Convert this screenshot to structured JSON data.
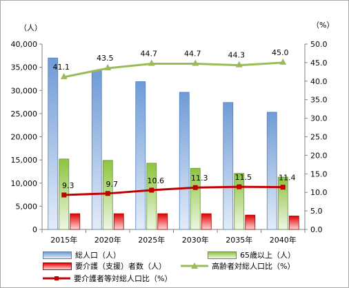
{
  "chart_data": {
    "type": "bar",
    "categories": [
      "2015年",
      "2020年",
      "2025年",
      "2030年",
      "2035年",
      "2040年"
    ],
    "left_axis": {
      "unit_label": "（人）",
      "min": 0,
      "max": 40000,
      "step": 5000,
      "ticks": [
        "0",
        "5,000",
        "10,000",
        "15,000",
        "20,000",
        "25,000",
        "30,000",
        "35,000",
        "40,000"
      ]
    },
    "right_axis": {
      "unit_label": "（%）",
      "min": 0,
      "max": 50,
      "step": 5,
      "ticks": [
        "0.0",
        "5.0",
        "10.0",
        "15.0",
        "20.0",
        "25.0",
        "30.0",
        "35.0",
        "40.0",
        "45.0",
        "50.0"
      ]
    },
    "grid": false,
    "legend_position": "bottom",
    "series": [
      {
        "name": "総人口（人）",
        "type": "bar",
        "axis": "left",
        "color": "#4f81bd",
        "values": [
          37000,
          34300,
          31900,
          29600,
          27400,
          25300
        ]
      },
      {
        "name": "65歳以上（人）",
        "type": "bar",
        "axis": "left",
        "color": "#9bbb59",
        "values": [
          15200,
          14900,
          14300,
          13200,
          12100,
          11300
        ]
      },
      {
        "name": "要介護（支援）者数（人）",
        "type": "bar",
        "axis": "left",
        "color": "#c00000",
        "values": [
          3400,
          3400,
          3400,
          3400,
          3100,
          2900
        ]
      },
      {
        "name": "高齢者対総人口比（%）",
        "type": "line",
        "axis": "right",
        "color": "#9bbb59",
        "marker": "triangle",
        "values": [
          41.1,
          43.5,
          44.7,
          44.7,
          44.3,
          45.0
        ],
        "labels": [
          "41.1",
          "43.5",
          "44.7",
          "44.7",
          "44.3",
          "45.0"
        ]
      },
      {
        "name": "要介護者等対総人口比（%）",
        "type": "line",
        "axis": "right",
        "color": "#c00000",
        "marker": "square",
        "values": [
          9.3,
          9.7,
          10.6,
          11.3,
          11.5,
          11.4
        ],
        "labels": [
          "9.3",
          "9.7",
          "10.6",
          "11.3",
          "11.5",
          "11.4"
        ]
      }
    ]
  }
}
